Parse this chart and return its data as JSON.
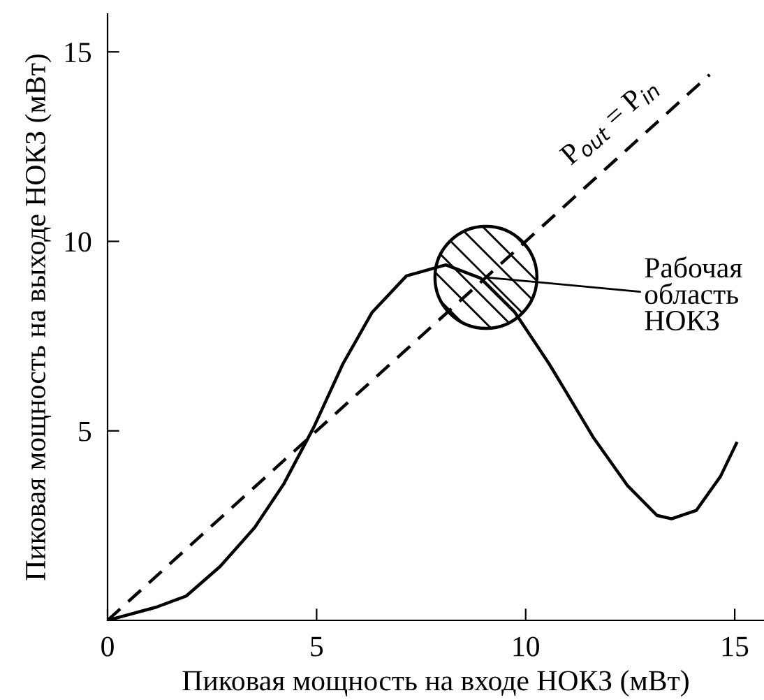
{
  "chart_data": {
    "type": "line",
    "xlabel": "Пиковая мощность на входе НОКЗ (мВт)",
    "ylabel": "Пиковая мощность на выходе НОКЗ (мВт)",
    "xlim": [
      0,
      15.7
    ],
    "ylim": [
      0,
      16
    ],
    "xticks": [
      0,
      5,
      10,
      15
    ],
    "yticks": [
      5,
      10,
      15
    ],
    "grid": false,
    "legend": false,
    "marker": "none",
    "series": [
      {
        "color": "#000000",
        "line_style": "solid",
        "x": [
          0,
          1.17,
          1.88,
          2.69,
          3.52,
          4.22,
          4.93,
          5.63,
          6.33,
          7.15,
          8.09,
          8.92,
          9.74,
          10.56,
          10.91,
          11.61,
          12.44,
          13.14,
          13.49,
          14.08,
          14.66,
          15.04
        ],
        "values": [
          0,
          0.35,
          0.64,
          1.42,
          2.45,
          3.61,
          5.09,
          6.77,
          8.13,
          9.09,
          9.38,
          9.03,
          8.13,
          6.77,
          6.13,
          4.84,
          3.55,
          2.77,
          2.68,
          2.9,
          3.8,
          4.67
        ]
      },
      {
        "name": "P$_{out}$ = P$_{in}$",
        "color": "#000000",
        "line_style": "dashed",
        "x": [
          0,
          14.4
        ],
        "values": [
          0,
          14.4
        ]
      }
    ],
    "annotations": [
      {
        "text": "Рабочая\nобласть\nНОКЗ",
        "x": 9.05,
        "y": 9.05
      }
    ]
  }
}
